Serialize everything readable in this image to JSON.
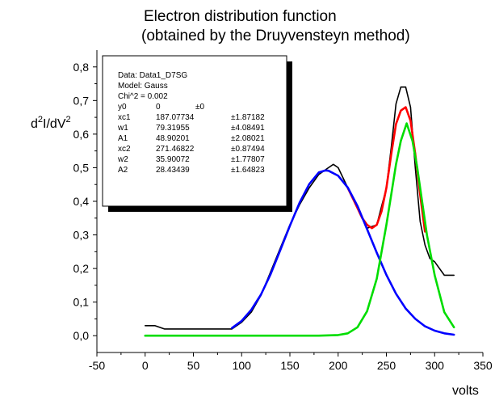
{
  "chart_data": {
    "type": "line",
    "title_lines": [
      "Electron distribution function",
      "(obtained by the Druyvensteyn method)"
    ],
    "xlabel": "volts",
    "ylabel_main": "d",
    "ylabel_sup1": "2",
    "ylabel_mid": "I/dV",
    "ylabel_sup2": "2",
    "xlim": [
      -50,
      350
    ],
    "ylim": [
      -0.05,
      0.85
    ],
    "x_ticks": [
      -50,
      0,
      50,
      100,
      150,
      200,
      250,
      300,
      350
    ],
    "y_ticks": [
      0.0,
      0.1,
      0.2,
      0.3,
      0.4,
      0.5,
      0.6,
      0.7,
      0.8
    ],
    "x_tick_labels": [
      "-50",
      "0",
      "50",
      "100",
      "150",
      "200",
      "250",
      "300",
      "350"
    ],
    "y_tick_labels": [
      "0,0",
      "0,1",
      "0,2",
      "0,3",
      "0,4",
      "0,5",
      "0,6",
      "0,7",
      "0,8"
    ],
    "grid": false,
    "legend_placement": "top-left",
    "fit_box": {
      "lines": [
        "Data: Data1_D7SG",
        "Model: Gauss",
        "Chi^2 = 0.002"
      ],
      "params": [
        {
          "name": "y0",
          "value": "0",
          "error": "±0"
        },
        {
          "name": "xc1",
          "value": "187.07734",
          "error": "±1.87182"
        },
        {
          "name": "w1",
          "value": "79.31955",
          "error": "±4.08491"
        },
        {
          "name": "A1",
          "value": "48.90201",
          "error": "±2.08021"
        },
        {
          "name": "xc2",
          "value": "271.46822",
          "error": "±0.87494"
        },
        {
          "name": "w2",
          "value": "35.90072",
          "error": "±1.77807"
        },
        {
          "name": "A2",
          "value": "28.43439",
          "error": "±1.64823"
        }
      ]
    },
    "series": [
      {
        "color": "#000000",
        "x": [
          0,
          10,
          20,
          30,
          40,
          50,
          60,
          70,
          80,
          90,
          100,
          110,
          120,
          130,
          140,
          150,
          160,
          170,
          180,
          190,
          195,
          200,
          210,
          220,
          230,
          240,
          250,
          255,
          260,
          265,
          270,
          275,
          280,
          285,
          290,
          295,
          300,
          310,
          320
        ],
        "y": [
          0.03,
          0.03,
          0.02,
          0.02,
          0.02,
          0.02,
          0.02,
          0.02,
          0.02,
          0.02,
          0.04,
          0.07,
          0.12,
          0.19,
          0.26,
          0.33,
          0.39,
          0.44,
          0.48,
          0.5,
          0.51,
          0.5,
          0.44,
          0.38,
          0.32,
          0.33,
          0.44,
          0.56,
          0.69,
          0.74,
          0.74,
          0.68,
          0.5,
          0.34,
          0.27,
          0.23,
          0.22,
          0.18,
          0.18
        ]
      },
      {
        "color": "#ff0000",
        "x": [
          210,
          215,
          220,
          225,
          230,
          235,
          240,
          245,
          250,
          255,
          260,
          265,
          270,
          275,
          280,
          285,
          290
        ],
        "y": [
          0.44,
          0.41,
          0.38,
          0.35,
          0.33,
          0.32,
          0.33,
          0.37,
          0.44,
          0.54,
          0.63,
          0.67,
          0.68,
          0.64,
          0.54,
          0.42,
          0.31
        ]
      },
      {
        "color": "#0000ff",
        "x": [
          90,
          100,
          110,
          120,
          130,
          140,
          150,
          160,
          170,
          180,
          187,
          190,
          200,
          210,
          220,
          230,
          240,
          250,
          260,
          270,
          280,
          290,
          300,
          310,
          320
        ],
        "y": [
          0.023,
          0.044,
          0.077,
          0.122,
          0.183,
          0.254,
          0.327,
          0.396,
          0.451,
          0.486,
          0.492,
          0.491,
          0.476,
          0.441,
          0.386,
          0.317,
          0.247,
          0.181,
          0.125,
          0.081,
          0.05,
          0.028,
          0.015,
          0.007,
          0.003
        ]
      },
      {
        "color": "#00dd00",
        "x": [
          0,
          180,
          200,
          210,
          220,
          230,
          240,
          250,
          255,
          260,
          265,
          271,
          277,
          282,
          287,
          292,
          300,
          310,
          320
        ],
        "y": [
          0.0,
          0.0,
          0.002,
          0.007,
          0.025,
          0.073,
          0.17,
          0.33,
          0.42,
          0.51,
          0.58,
          0.632,
          0.58,
          0.5,
          0.4,
          0.3,
          0.18,
          0.07,
          0.025
        ]
      }
    ]
  }
}
